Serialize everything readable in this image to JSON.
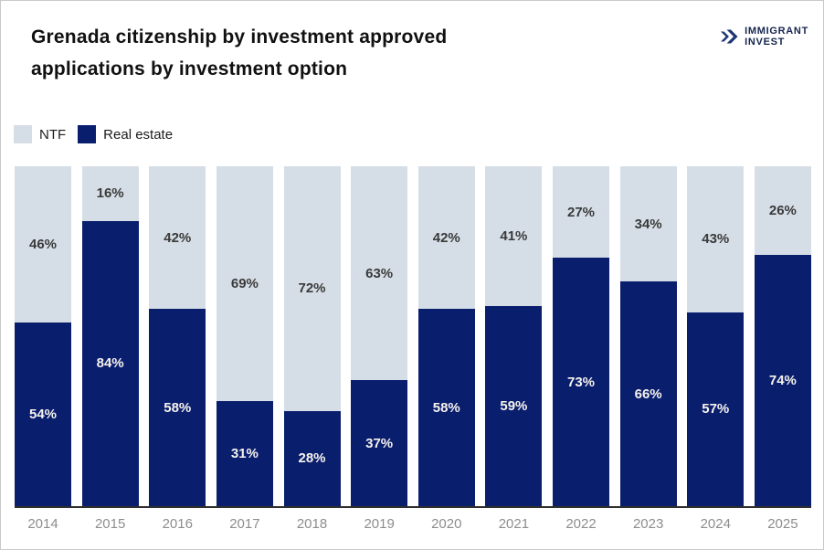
{
  "header": {
    "title_line1": "Grenada citizenship by investment approved",
    "title_line2": "applications by investment option",
    "logo": {
      "icon": "double-chevron-icon",
      "line1": "IMMIGRANT",
      "line2": "INVEST",
      "color": "#16254e"
    }
  },
  "legend": [
    {
      "label": "NTF",
      "color": "#d5dee6"
    },
    {
      "label": "Real estate",
      "color": "#0a1e6e"
    }
  ],
  "chart_data": {
    "type": "bar",
    "stacked": true,
    "percent_stacked": true,
    "title": "Grenada citizenship by investment approved applications by investment option",
    "categories": [
      "2014",
      "2015",
      "2016",
      "2017",
      "2018",
      "2019",
      "2020",
      "2021",
      "2022",
      "2023",
      "2024",
      "2025"
    ],
    "series": [
      {
        "name": "NTF",
        "color": "#d5dee6",
        "values": [
          46,
          16,
          42,
          69,
          72,
          63,
          42,
          41,
          27,
          34,
          43,
          26
        ]
      },
      {
        "name": "Real estate",
        "color": "#0a1e6e",
        "values": [
          54,
          84,
          58,
          31,
          28,
          37,
          58,
          59,
          73,
          66,
          57,
          74
        ]
      }
    ],
    "value_suffix": "%",
    "ylim": [
      0,
      100
    ],
    "grid": false,
    "y_axis_visible": false,
    "legend_position": "top-left",
    "label_color_on_light": "#3a3a3a",
    "label_color_on_dark": "#f6f3ed",
    "axis_line_color": "#2f2f2f",
    "tick_label_color": "#8d8d8d"
  }
}
